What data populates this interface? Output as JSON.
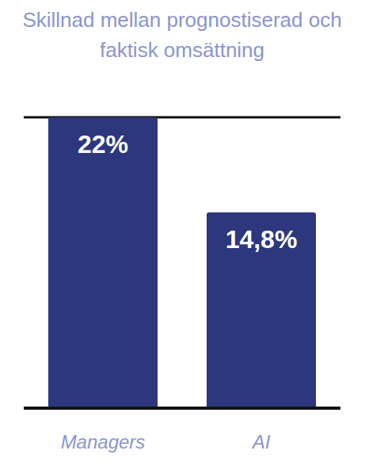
{
  "chart_data": {
    "type": "bar",
    "title": "Skillnad mellan prognostiserad och faktisk omsättning",
    "categories": [
      "Managers",
      "AI"
    ],
    "values": [
      22,
      14.8
    ],
    "value_labels": [
      "22%",
      "14,8%"
    ],
    "color": "#2c377d",
    "ylim": [
      0,
      22
    ],
    "yticks": [
      0,
      4,
      8,
      12,
      16,
      20
    ],
    "grid": true,
    "data_labels": true,
    "tick_labels": "x"
  }
}
